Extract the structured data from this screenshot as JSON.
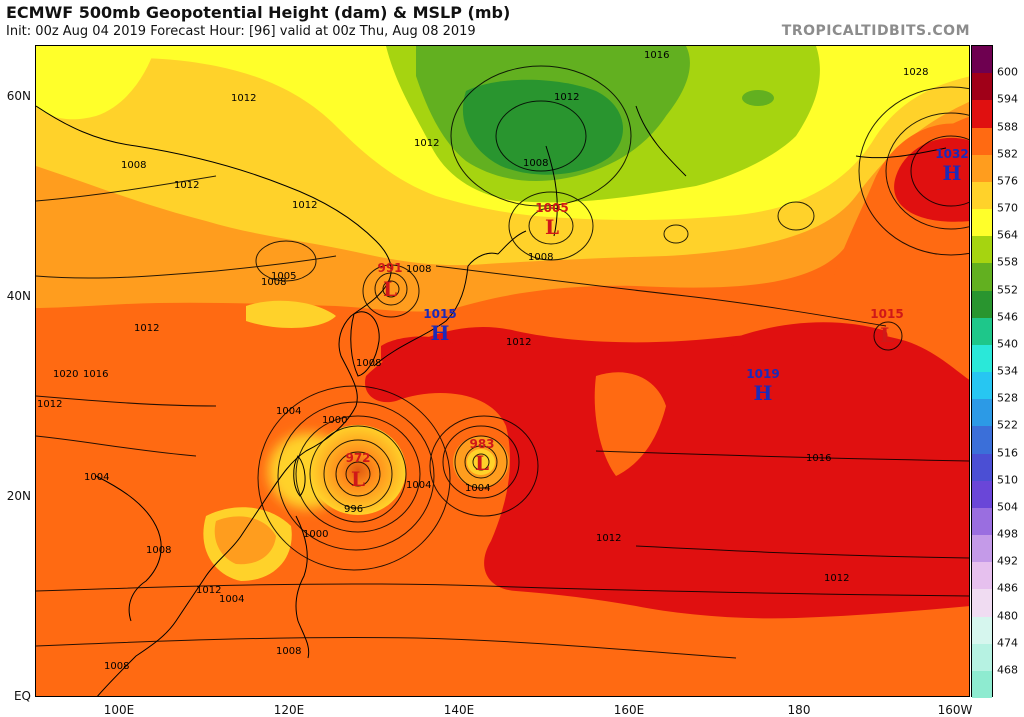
{
  "header": {
    "title": "ECMWF 500mb Geopotential Height (dam) & MSLP (mb)",
    "subtitle": "Init: 00z Aug 04 2019   Forecast Hour: [96]   valid at 00z Thu, Aug 08 2019",
    "watermark": "TROPICALTIDBITS.COM"
  },
  "axes": {
    "lat_labels": [
      "60N",
      "40N",
      "20N",
      "EQ"
    ],
    "lon_labels": [
      "100E",
      "120E",
      "140E",
      "160E",
      "180",
      "160W"
    ]
  },
  "colorbar": {
    "labels": [
      "600",
      "594",
      "588",
      "582",
      "576",
      "570",
      "564",
      "558",
      "552",
      "546",
      "540",
      "534",
      "528",
      "522",
      "516",
      "510",
      "504",
      "498",
      "492",
      "486",
      "480",
      "474",
      "468"
    ],
    "colors": [
      "#6e0050",
      "#a00018",
      "#e01010",
      "#ff6a12",
      "#ff9d1e",
      "#ffd22a",
      "#ffff2a",
      "#a6d410",
      "#62b020",
      "#29952f",
      "#1ec78a",
      "#2ae8d9",
      "#27c6f2",
      "#2c9ae6",
      "#3b6fd9",
      "#4b4fd4",
      "#6a46d8",
      "#9a6ee0",
      "#c49ae8",
      "#e6c0ee",
      "#f0dcf2",
      "#d6f6ee",
      "#b6f2e2",
      "#8eebd0"
    ]
  },
  "pressure_centers": [
    {
      "type": "H",
      "value": "1032"
    },
    {
      "type": "L",
      "value": "1005"
    },
    {
      "type": "L",
      "value": "991"
    },
    {
      "type": "H",
      "value": "1015"
    },
    {
      "type": "L",
      "value": "1015"
    },
    {
      "type": "H",
      "value": "1019"
    },
    {
      "type": "L",
      "value": "972"
    },
    {
      "type": "L",
      "value": "983"
    }
  ],
  "isobar_labels": [
    "1016",
    "1012",
    "1012",
    "1008",
    "1012",
    "1012",
    "1008",
    "1005",
    "1028",
    "1008",
    "1012",
    "1008",
    "1012",
    "1020",
    "1016",
    "1012",
    "1008",
    "1004",
    "1004",
    "1012",
    "1016",
    "1012",
    "1012",
    "1000",
    "1004",
    "996",
    "1004",
    "1000",
    "1004",
    "1008",
    "1008",
    "1008",
    "1012",
    "1008"
  ]
}
